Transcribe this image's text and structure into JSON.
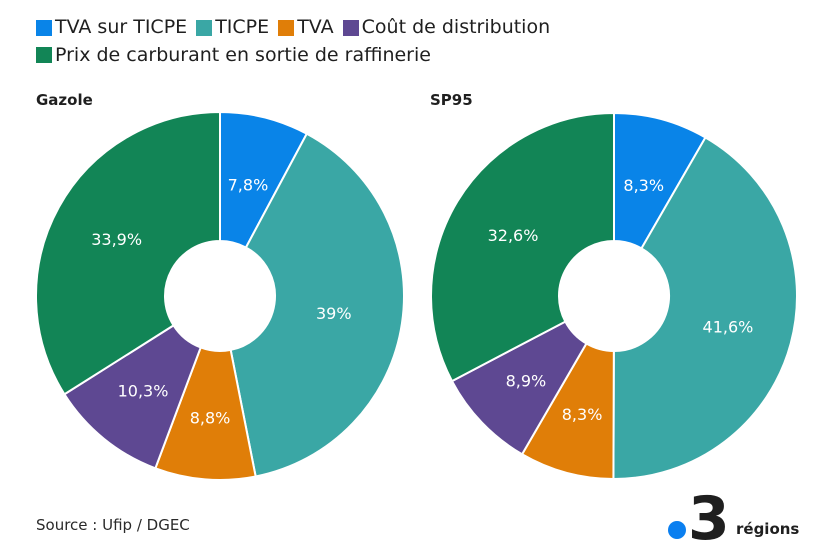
{
  "legend": [
    {
      "label": "TVA sur TICPE",
      "color": "#0984E8"
    },
    {
      "label": "TICPE",
      "color": "#3AA7A5"
    },
    {
      "label": "TVA",
      "color": "#E07E08"
    },
    {
      "label": "Coût de distribution",
      "color": "#5E4892"
    },
    {
      "label": "Prix de carburant en sortie de raffinerie",
      "color": "#128556"
    }
  ],
  "chart_data": [
    {
      "type": "pie",
      "title": "Gazole",
      "categories": [
        "TVA sur TICPE",
        "TICPE",
        "TVA",
        "Coût de distribution",
        "Prix de carburant en sortie de raffinerie"
      ],
      "values": [
        7.8,
        39,
        8.8,
        10.3,
        33.9
      ],
      "labels": [
        "7,8%",
        "39%",
        "8,8%",
        "10,3%",
        "33,9%"
      ],
      "donut": true
    },
    {
      "type": "pie",
      "title": "SP95",
      "categories": [
        "TVA sur TICPE",
        "TICPE",
        "TVA",
        "Coût de distribution",
        "Prix de carburant en sortie de raffinerie"
      ],
      "values": [
        8.3,
        41.6,
        8.3,
        8.9,
        32.6
      ],
      "labels": [
        "8,3%",
        "41,6%",
        "8,3%",
        "8,9%",
        "32,6%"
      ],
      "donut": true
    }
  ],
  "footer": {
    "source": "Source : Ufip / DGEC",
    "logo_number": "3",
    "logo_text": "régions"
  }
}
